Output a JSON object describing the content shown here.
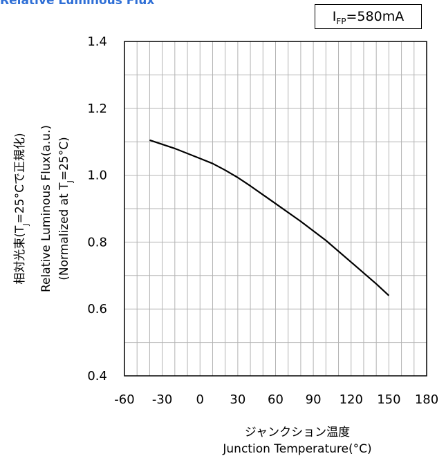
{
  "title": "Relative Luminous Flux",
  "condition": {
    "prefix": "I",
    "sub": "FP",
    "suffix": "=580mA"
  },
  "chart_data": {
    "type": "line",
    "title": "Relative Luminous Flux",
    "xlabel_jp": "ジャンクション温度",
    "xlabel": "Junction Temperature(°C)",
    "ylabel_jp": "相対光束(T",
    "ylabel_jp_sub": "J",
    "ylabel_jp_suffix": "=25°Cで正規化)",
    "ylabel": "Relative Luminous Flux(a.u.)",
    "ylabel2_prefix": "(Normalized at T",
    "ylabel2_sub": "J",
    "ylabel2_suffix": "=25°C)",
    "xlim": [
      -60,
      180
    ],
    "ylim": [
      0.4,
      1.4
    ],
    "x_ticks": [
      -60,
      -30,
      0,
      30,
      60,
      90,
      120,
      150,
      180
    ],
    "y_ticks": [
      "0.4",
      "0.6",
      "0.8",
      "1.0",
      "1.2",
      "1.4"
    ],
    "grid": true,
    "series": [
      {
        "x": [
          -40,
          -20,
          0,
          10,
          20,
          30,
          40,
          60,
          80,
          100,
          120,
          140,
          150
        ],
        "y": [
          1.105,
          1.08,
          1.05,
          1.035,
          1.015,
          0.993,
          0.968,
          0.915,
          0.862,
          0.805,
          0.74,
          0.675,
          0.64
        ]
      }
    ]
  }
}
